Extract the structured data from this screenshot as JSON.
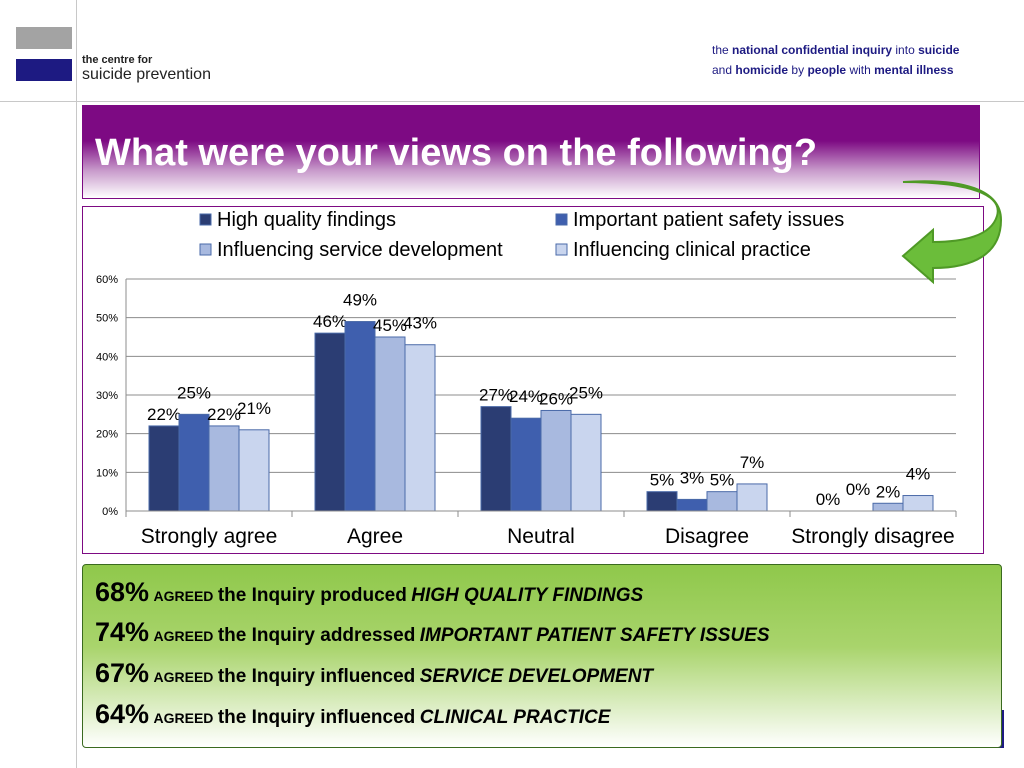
{
  "header": {
    "org_small": "the centre for",
    "org_name": "suicide prevention",
    "inquiry": {
      "the": "the",
      "national_confidential_inquiry": "national confidential inquiry",
      "into": "into",
      "suicide": "suicide",
      "and": "and",
      "homicide": "homicide",
      "by": "by",
      "people": "people",
      "with": "with",
      "mental_illness": "mental illness"
    }
  },
  "title": "What were your views on the following?",
  "colors": {
    "purple": "#7d0a83",
    "navy": "#1d1a82",
    "green": "#8fc84b",
    "arrow_green": "#6bbd3a"
  },
  "chart_data": {
    "type": "bar",
    "categories": [
      "Strongly agree",
      "Agree",
      "Neutral",
      "Disagree",
      "Strongly disagree"
    ],
    "series": [
      {
        "name": "High quality findings",
        "values": [
          22,
          46,
          27,
          5,
          0
        ],
        "color": "#2b3d73"
      },
      {
        "name": "Important patient safety issues",
        "values": [
          25,
          49,
          24,
          3,
          0
        ],
        "color": "#3f5fae"
      },
      {
        "name": "Influencing service development",
        "values": [
          22,
          45,
          26,
          5,
          2
        ],
        "color": "#a8b9df"
      },
      {
        "name": "Influencing clinical practice",
        "values": [
          21,
          43,
          25,
          7,
          4
        ],
        "color": "#c9d5ee"
      }
    ],
    "data_labels": [
      [
        "22%",
        "25%",
        "22%",
        "21%"
      ],
      [
        "46%",
        "49%",
        "45%",
        "43%"
      ],
      [
        "27%",
        "24%",
        "26%",
        "25%"
      ],
      [
        "5%",
        "3%",
        "5%",
        "7%"
      ],
      [
        "0%",
        "0%",
        "2%",
        "4%"
      ]
    ],
    "yticks": [
      "0%",
      "10%",
      "20%",
      "30%",
      "40%",
      "50%",
      "60%"
    ],
    "ylim": [
      0,
      60
    ],
    "grid": true,
    "legend_position": "top"
  },
  "summary": [
    {
      "pct": "68%",
      "agreed": "AGREED",
      "text": "the Inquiry produced",
      "focus": "HIGH QUALITY FINDINGS"
    },
    {
      "pct": "74%",
      "agreed": "AGREED",
      "text": "the Inquiry addressed",
      "focus": "IMPORTANT PATIENT SAFETY ISSUES"
    },
    {
      "pct": "67%",
      "agreed": "AGREED",
      "text": "the Inquiry influenced",
      "focus": "SERVICE DEVELOPMENT"
    },
    {
      "pct": "64%",
      "agreed": "AGREED",
      "text": "the Inquiry influenced",
      "focus": "CLINICAL PRACTICE"
    }
  ]
}
